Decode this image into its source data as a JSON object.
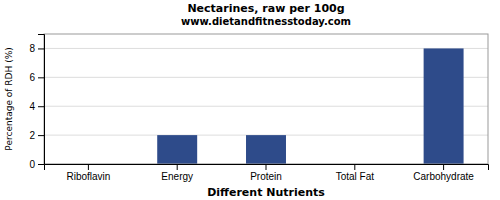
{
  "chart_data": {
    "type": "bar",
    "title": "Nectarines, raw per 100g",
    "subtitle": "www.dietandfitnesstoday.com",
    "xlabel": "Different Nutrients",
    "ylabel": "Percentage of RDH (%)",
    "categories": [
      "Riboflavin",
      "Energy",
      "Protein",
      "Total Fat",
      "Carbohydrate"
    ],
    "values": [
      0,
      2,
      2,
      0,
      8
    ],
    "color": "#2e4b8a",
    "ylim": [
      0,
      9
    ],
    "yticks": [
      0,
      2,
      4,
      6,
      8
    ],
    "grid": true
  }
}
